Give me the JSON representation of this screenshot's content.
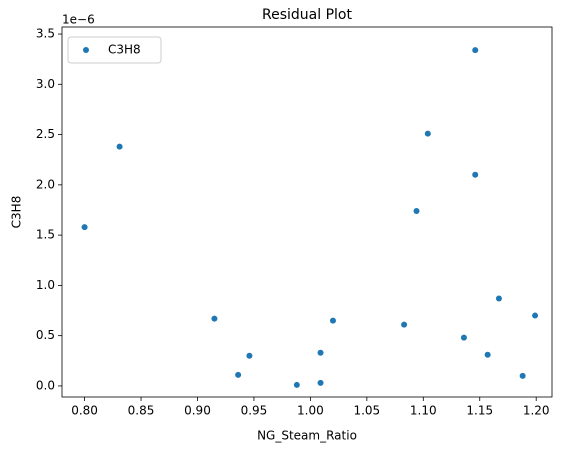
{
  "chart_data": {
    "type": "scatter",
    "title": "Residual Plot",
    "x_label": "NG_Steam_Ratio",
    "y_label": "C3H8",
    "y_offset_label": "1e−6",
    "legend": "upper left",
    "series": [
      {
        "name": "C3H8",
        "color": "#1f77b4",
        "x": [
          0.8,
          0.831,
          0.915,
          0.936,
          0.946,
          0.988,
          1.009,
          1.009,
          1.02,
          1.083,
          1.094,
          1.104,
          1.136,
          1.146,
          1.146,
          1.157,
          1.167,
          1.188,
          1.199
        ],
        "values": [
          1.58,
          2.38,
          0.67,
          0.11,
          0.3,
          0.01,
          0.33,
          0.03,
          0.65,
          0.61,
          1.74,
          2.51,
          0.48,
          3.34,
          2.1,
          0.31,
          0.87,
          0.1,
          0.7
        ]
      }
    ],
    "xlim": [
      0.78,
      1.214
    ],
    "ylim": [
      -0.11,
      3.57
    ],
    "xticks": [
      {
        "value": 0.8,
        "label": "0.80"
      },
      0.85,
      {
        "value": 0.9,
        "label": "0.90"
      },
      0.95,
      {
        "value": 1.0,
        "label": "1.00"
      },
      1.05,
      {
        "value": 1.1,
        "label": "1.10"
      },
      1.15,
      {
        "value": 1.2,
        "label": "1.20"
      }
    ],
    "yticks": [
      {
        "value": 0,
        "label": "0.0"
      },
      0.5,
      {
        "value": 1,
        "label": "1.0"
      },
      1.5,
      {
        "value": 2,
        "label": "2.0"
      },
      2.5,
      {
        "value": 3,
        "label": "3.0"
      },
      3.5
    ]
  }
}
